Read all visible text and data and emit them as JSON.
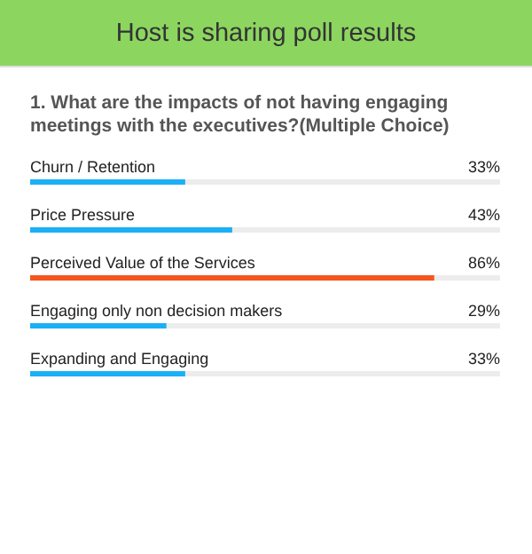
{
  "chart_data": {
    "type": "bar",
    "orientation": "horizontal",
    "title": "Host is sharing poll results",
    "subtitle": "1. What are the impacts of not having engaging meetings with the executives?(Multiple Choice)",
    "categories": [
      "Churn / Retention",
      "Price Pressure",
      "Perceived Value of the Services",
      "Engaging only non decision makers",
      "Expanding and Engaging"
    ],
    "values": [
      33,
      43,
      86,
      29,
      33
    ],
    "value_labels": [
      "33%",
      "43%",
      "86%",
      "29%",
      "33%"
    ],
    "colors": [
      "#1bb0f5",
      "#1bb0f5",
      "#f5561f",
      "#1bb0f5",
      "#1bb0f5"
    ],
    "xlim": [
      0,
      100
    ],
    "tick_labels": false,
    "grid": false
  }
}
